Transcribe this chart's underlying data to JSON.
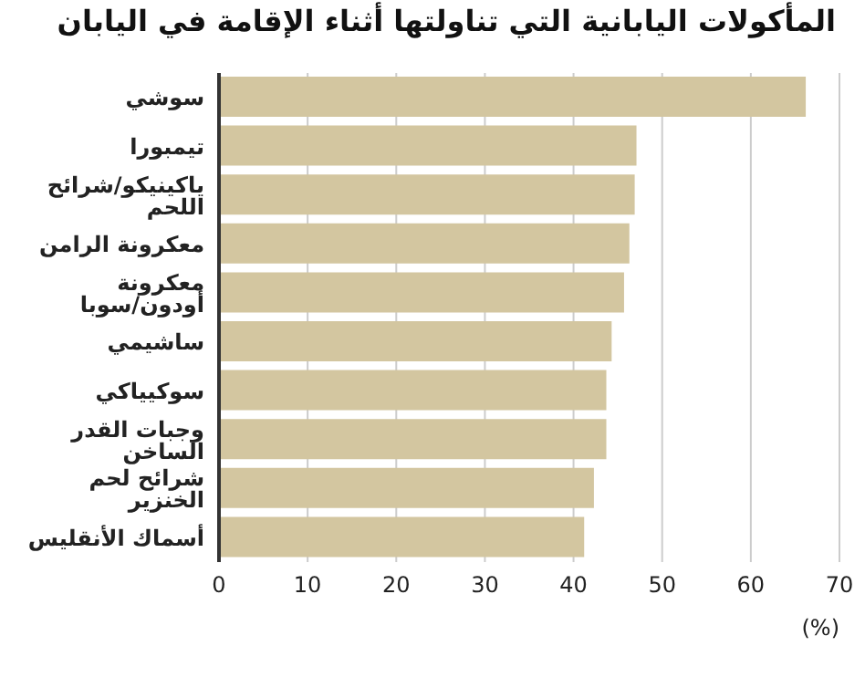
{
  "chart_data": {
    "type": "bar",
    "orientation": "horizontal",
    "title": "المأكولات اليابانية التي تناولتها أثناء الإقامة في اليابان",
    "xlabel": "(%)",
    "categories": [
      "سوشي",
      "تيمبورا",
      "ياكينيكو/شرائح اللحم",
      "معكرونة الرامن",
      "معكرونة أودون/سوبا",
      "ساشيمي",
      "سوكيياكي",
      "وجبات القدر الساخن",
      "شرائح لحم الخنزير",
      "أسماك الأنقليس"
    ],
    "values": [
      66.2,
      47.1,
      46.9,
      46.3,
      45.7,
      44.3,
      43.7,
      43.7,
      42.3,
      41.2
    ],
    "color": "#d3c6a0",
    "xlim": [
      0,
      70
    ],
    "xticks": [
      0,
      10,
      20,
      30,
      40,
      50,
      60,
      70
    ],
    "grid": "x"
  }
}
